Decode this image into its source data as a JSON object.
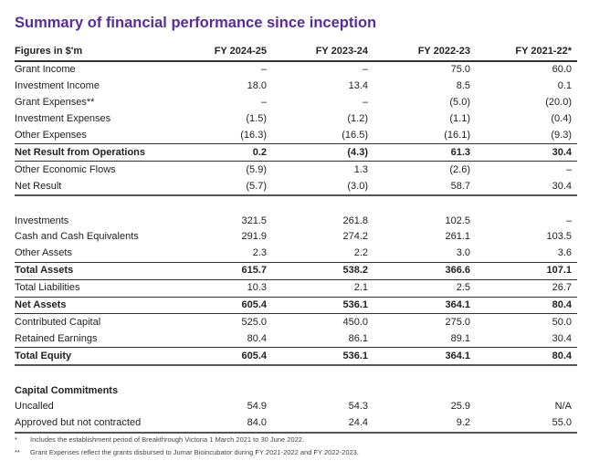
{
  "title": "Summary of financial performance since inception",
  "table": {
    "headers": [
      "Figures in $'m",
      "FY 2024-25",
      "FY 2023-24",
      "FY 2022-23",
      "FY 2021-22*"
    ],
    "rows": [
      {
        "label": "Grant Income",
        "values": [
          "–",
          "–",
          "75.0",
          "60.0"
        ]
      },
      {
        "label": "Investment Income",
        "values": [
          "18.0",
          "13.4",
          "8.5",
          "0.1"
        ]
      },
      {
        "label": "Grant Expenses**",
        "values": [
          "–",
          "–",
          "(5.0)",
          "(20.0)"
        ]
      },
      {
        "label": "Investment Expenses",
        "values": [
          "(1.5)",
          "(1.2)",
          "(1.1)",
          "(0.4)"
        ]
      },
      {
        "label": "Other Expenses",
        "values": [
          "(16.3)",
          "(16.5)",
          "(16.1)",
          "(9.3)"
        ]
      },
      {
        "label": "Net Result from Operations",
        "values": [
          "0.2",
          "(4.3)",
          "61.3",
          "30.4"
        ]
      },
      {
        "label": "Other Economic Flows",
        "values": [
          "(5.9)",
          "1.3",
          "(2.6)",
          "–"
        ]
      },
      {
        "label": "Net Result",
        "values": [
          "(5.7)",
          "(3.0)",
          "58.7",
          "30.4"
        ]
      },
      {
        "label": "Investments",
        "values": [
          "321.5",
          "261.8",
          "102.5",
          "–"
        ]
      },
      {
        "label": "Cash and Cash Equivalents",
        "values": [
          "291.9",
          "274.2",
          "261.1",
          "103.5"
        ]
      },
      {
        "label": "Other Assets",
        "values": [
          "2.3",
          "2.2",
          "3.0",
          "3.6"
        ]
      },
      {
        "label": "Total Assets",
        "values": [
          "615.7",
          "538.2",
          "366.6",
          "107.1"
        ]
      },
      {
        "label": "Total Liabilities",
        "values": [
          "10.3",
          "2.1",
          "2.5",
          "26.7"
        ]
      },
      {
        "label": "Net Assets",
        "values": [
          "605.4",
          "536.1",
          "364.1",
          "80.4"
        ]
      },
      {
        "label": "Contributed Capital",
        "values": [
          "525.0",
          "450.0",
          "275.0",
          "50.0"
        ]
      },
      {
        "label": "Retained Earnings",
        "values": [
          "80.4",
          "86.1",
          "89.1",
          "30.4"
        ]
      },
      {
        "label": "Total Equity",
        "values": [
          "605.4",
          "536.1",
          "364.1",
          "80.4"
        ]
      },
      {
        "label": "Capital Commitments",
        "values": [
          "",
          "",
          "",
          ""
        ]
      },
      {
        "label": "Uncalled",
        "values": [
          "54.9",
          "54.3",
          "25.9",
          "N/A"
        ]
      },
      {
        "label": "Approved but not contracted",
        "values": [
          "84.0",
          "24.4",
          "9.2",
          "55.0"
        ]
      }
    ]
  },
  "footnotes": [
    {
      "mark": "*",
      "text": "Includes the establishment period of Breakthrough Victoria 1 March 2021 to 30 June 2022."
    },
    {
      "mark": "**",
      "text": "Grant Expenses reflect the grants disbursed to Jumar Bioincubator during FY 2021-2022 and FY 2022-2023."
    }
  ]
}
